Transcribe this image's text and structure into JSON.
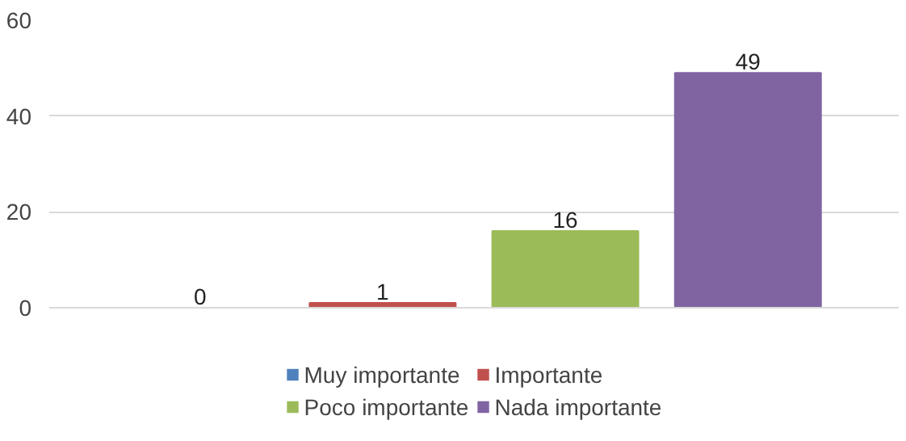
{
  "chart_data": {
    "type": "bar",
    "categories": [
      null
    ],
    "series": [
      {
        "name": "Muy importante",
        "color": "#4f81bd",
        "values": [
          0
        ]
      },
      {
        "name": "Importante",
        "color": "#c0504d",
        "values": [
          1
        ]
      },
      {
        "name": "Poco importante",
        "color": "#9bbb59",
        "values": [
          16
        ]
      },
      {
        "name": "Nada importante",
        "color": "#8064a2",
        "values": [
          49
        ]
      }
    ],
    "ylim": [
      0,
      60
    ],
    "yticks": [
      0,
      20,
      40,
      60
    ],
    "grid": "y",
    "data_labels": true,
    "legend": "bottom"
  }
}
